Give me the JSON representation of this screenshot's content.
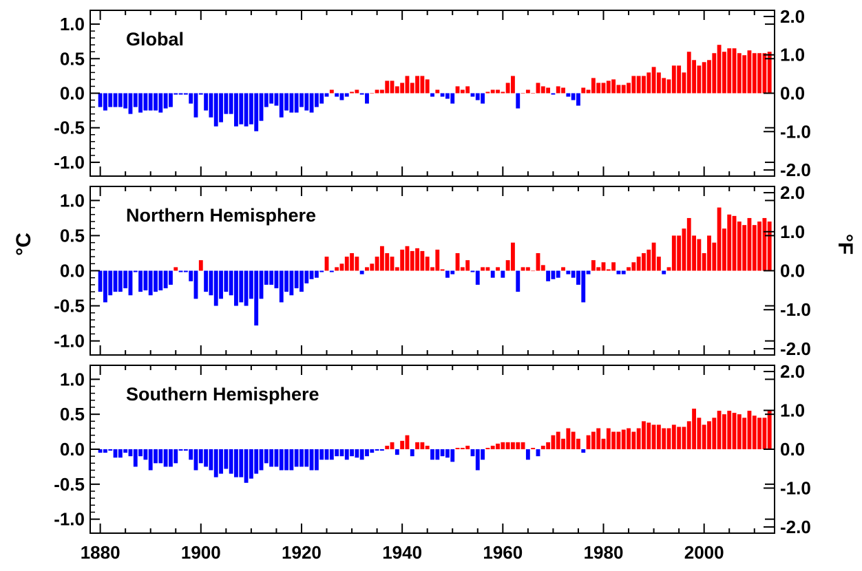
{
  "chart_data": {
    "type": "bar",
    "x": [
      1880,
      1881,
      1882,
      1883,
      1884,
      1885,
      1886,
      1887,
      1888,
      1889,
      1890,
      1891,
      1892,
      1893,
      1894,
      1895,
      1896,
      1897,
      1898,
      1899,
      1900,
      1901,
      1902,
      1903,
      1904,
      1905,
      1906,
      1907,
      1908,
      1909,
      1910,
      1911,
      1912,
      1913,
      1914,
      1915,
      1916,
      1917,
      1918,
      1919,
      1920,
      1921,
      1922,
      1923,
      1924,
      1925,
      1926,
      1927,
      1928,
      1929,
      1930,
      1931,
      1932,
      1933,
      1934,
      1935,
      1936,
      1937,
      1938,
      1939,
      1940,
      1941,
      1942,
      1943,
      1944,
      1945,
      1946,
      1947,
      1948,
      1949,
      1950,
      1951,
      1952,
      1953,
      1954,
      1955,
      1956,
      1957,
      1958,
      1959,
      1960,
      1961,
      1962,
      1963,
      1964,
      1965,
      1966,
      1967,
      1968,
      1969,
      1970,
      1971,
      1972,
      1973,
      1974,
      1975,
      1976,
      1977,
      1978,
      1979,
      1980,
      1981,
      1982,
      1983,
      1984,
      1985,
      1986,
      1987,
      1988,
      1989,
      1990,
      1991,
      1992,
      1993,
      1994,
      1995,
      1996,
      1997,
      1998,
      1999,
      2000,
      2001,
      2002,
      2003,
      2004,
      2005,
      2006,
      2007,
      2008,
      2009,
      2010,
      2011,
      2012,
      2013
    ],
    "xlim": [
      1878,
      2014
    ],
    "xticks": [
      "1880",
      "1900",
      "1920",
      "1940",
      "1960",
      "1980",
      "2000"
    ],
    "ylim_c": [
      -1.2,
      1.2
    ],
    "yticks_c": [
      "1.0",
      "0.5",
      "0.0",
      "-0.5",
      "-1.0"
    ],
    "yticks_f": [
      "2.0",
      "1.0",
      "0.0",
      "-1.0",
      "-2.0"
    ],
    "ylabel_left": "°C",
    "ylabel_right": "°F",
    "positive_color": "#ff0000",
    "negative_color": "#0000ff",
    "grid": false,
    "series": [
      {
        "name": "Global",
        "values": [
          -0.2,
          -0.25,
          -0.2,
          -0.2,
          -0.2,
          -0.22,
          -0.3,
          -0.2,
          -0.28,
          -0.25,
          -0.25,
          -0.25,
          -0.28,
          -0.22,
          -0.2,
          -0.02,
          -0.02,
          -0.02,
          -0.15,
          -0.35,
          -0.02,
          -0.25,
          -0.35,
          -0.48,
          -0.42,
          -0.3,
          -0.3,
          -0.48,
          -0.45,
          -0.48,
          -0.45,
          -0.55,
          -0.4,
          -0.2,
          -0.15,
          -0.18,
          -0.35,
          -0.25,
          -0.28,
          -0.28,
          -0.2,
          -0.25,
          -0.28,
          -0.2,
          -0.15,
          -0.05,
          0.05,
          -0.05,
          -0.1,
          -0.05,
          0.02,
          0.05,
          -0.02,
          -0.15,
          0.0,
          0.05,
          0.05,
          0.18,
          0.18,
          0.1,
          0.15,
          0.25,
          0.15,
          0.25,
          0.25,
          0.2,
          -0.05,
          0.05,
          -0.05,
          -0.08,
          -0.15,
          0.1,
          0.05,
          0.1,
          -0.05,
          -0.1,
          -0.15,
          0.02,
          0.05,
          0.05,
          0.02,
          0.15,
          0.25,
          -0.22,
          0.0,
          0.05,
          0.0,
          0.15,
          0.1,
          0.08,
          -0.02,
          0.1,
          0.08,
          -0.05,
          -0.1,
          -0.18,
          0.08,
          0.05,
          0.22,
          0.15,
          0.15,
          0.18,
          0.2,
          0.12,
          0.12,
          0.15,
          0.25,
          0.25,
          0.25,
          0.3,
          0.38,
          0.3,
          0.22,
          0.2,
          0.4,
          0.4,
          0.3,
          0.6,
          0.48,
          0.4,
          0.45,
          0.48,
          0.58,
          0.7,
          0.6,
          0.65,
          0.65,
          0.58,
          0.55,
          0.62,
          0.58,
          0.58,
          0.58,
          0.6
        ]
      },
      {
        "name": "Northern Hemisphere",
        "values": [
          -0.3,
          -0.45,
          -0.35,
          -0.3,
          -0.3,
          -0.25,
          -0.35,
          -0.02,
          -0.3,
          -0.28,
          -0.35,
          -0.3,
          -0.28,
          -0.25,
          -0.2,
          0.05,
          -0.02,
          -0.02,
          -0.15,
          -0.4,
          0.15,
          -0.3,
          -0.35,
          -0.5,
          -0.4,
          -0.3,
          -0.35,
          -0.5,
          -0.45,
          -0.5,
          -0.4,
          -0.78,
          -0.4,
          -0.2,
          -0.2,
          -0.25,
          -0.45,
          -0.3,
          -0.35,
          -0.25,
          -0.3,
          -0.18,
          -0.12,
          -0.1,
          -0.02,
          0.2,
          -0.02,
          0.05,
          0.1,
          0.2,
          0.25,
          0.2,
          -0.05,
          0.05,
          0.1,
          0.2,
          0.35,
          0.25,
          0.2,
          0.05,
          0.3,
          0.35,
          0.28,
          0.32,
          0.28,
          0.2,
          0.05,
          0.3,
          0.02,
          -0.1,
          -0.05,
          0.25,
          0.05,
          0.15,
          -0.02,
          -0.2,
          0.05,
          0.05,
          -0.1,
          0.05,
          -0.1,
          0.15,
          0.4,
          -0.3,
          0.05,
          0.05,
          0.0,
          0.25,
          0.08,
          -0.15,
          -0.12,
          -0.1,
          0.05,
          -0.05,
          -0.1,
          -0.2,
          -0.45,
          -0.05,
          0.15,
          0.05,
          0.12,
          0.02,
          0.12,
          -0.05,
          -0.05,
          0.05,
          0.12,
          0.2,
          0.25,
          0.3,
          0.4,
          0.2,
          -0.05,
          0.05,
          0.5,
          0.5,
          0.6,
          0.75,
          0.5,
          0.45,
          0.25,
          0.5,
          0.4,
          0.9,
          0.6,
          0.8,
          0.78,
          0.7,
          0.65,
          0.75,
          0.65,
          0.7,
          0.75,
          0.7
        ]
      },
      {
        "name": "Southern Hemisphere",
        "values": [
          -0.05,
          -0.05,
          -0.02,
          -0.12,
          -0.12,
          -0.05,
          -0.1,
          -0.25,
          -0.1,
          -0.15,
          -0.3,
          -0.2,
          -0.2,
          -0.25,
          -0.25,
          -0.2,
          -0.02,
          -0.02,
          -0.15,
          -0.3,
          -0.2,
          -0.25,
          -0.3,
          -0.4,
          -0.35,
          -0.28,
          -0.35,
          -0.4,
          -0.4,
          -0.48,
          -0.42,
          -0.35,
          -0.3,
          -0.2,
          -0.25,
          -0.25,
          -0.3,
          -0.3,
          -0.3,
          -0.25,
          -0.25,
          -0.25,
          -0.3,
          -0.3,
          -0.15,
          -0.15,
          -0.15,
          -0.1,
          -0.1,
          -0.15,
          -0.1,
          -0.12,
          -0.15,
          -0.1,
          -0.05,
          -0.02,
          -0.02,
          0.05,
          0.1,
          -0.08,
          0.12,
          0.2,
          -0.1,
          0.1,
          0.1,
          0.05,
          -0.15,
          -0.15,
          -0.1,
          -0.12,
          -0.18,
          0.02,
          0.02,
          0.05,
          -0.1,
          -0.3,
          -0.15,
          0.02,
          0.05,
          0.08,
          0.1,
          0.1,
          0.1,
          0.1,
          0.1,
          -0.15,
          0.02,
          -0.1,
          0.05,
          0.1,
          0.2,
          0.25,
          0.15,
          0.3,
          0.25,
          0.15,
          -0.05,
          0.2,
          0.25,
          0.3,
          0.15,
          0.3,
          0.25,
          0.25,
          0.28,
          0.3,
          0.25,
          0.3,
          0.4,
          0.38,
          0.35,
          0.35,
          0.3,
          0.3,
          0.35,
          0.32,
          0.32,
          0.4,
          0.58,
          0.45,
          0.35,
          0.4,
          0.45,
          0.55,
          0.5,
          0.55,
          0.52,
          0.5,
          0.45,
          0.55,
          0.48,
          0.45,
          0.45,
          0.55
        ]
      }
    ]
  }
}
